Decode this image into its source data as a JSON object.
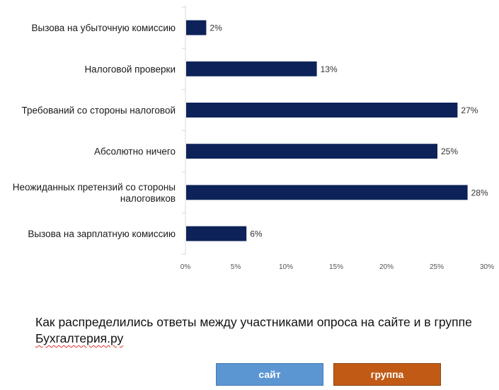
{
  "chart_data": {
    "type": "bar",
    "orientation": "horizontal",
    "categories": [
      "Вызова на убыточную комиссию",
      "Налоговой проверки",
      "Требований со стороны налоговой",
      "Абсолютно ничего",
      "Неожиданных претензий со стороны налоговиков",
      "Вызова на зарплатную комиссию"
    ],
    "category_lines": [
      [
        "Вызова на убыточную комиссию"
      ],
      [
        "Налоговой проверки"
      ],
      [
        "Требований со стороны налоговой"
      ],
      [
        "Абсолютно ничего"
      ],
      [
        "Неожиданных претензий со стороны",
        "налоговиков"
      ],
      [
        "Вызова на зарплатную комиссию"
      ]
    ],
    "values": [
      2,
      13,
      27,
      25,
      28,
      6
    ],
    "value_labels": [
      "2%",
      "13%",
      "27%",
      "25%",
      "28%",
      "6%"
    ],
    "xlim": [
      0,
      30
    ],
    "ticks": [
      0,
      5,
      10,
      15,
      20,
      25,
      30
    ],
    "tick_labels": [
      "0%",
      "5%",
      "10%",
      "15%",
      "20%",
      "25%",
      "30%"
    ],
    "grid": false,
    "bar_color": "#0d2259",
    "xlabel": "",
    "ylabel": ""
  },
  "caption": {
    "line1": "Как распределились ответы между участниками опроса на сайте и в группе",
    "line2": "Бухгалтерия.ру"
  },
  "buttons": {
    "site_label": "сайт",
    "site_color": "#5b95d2",
    "group_label": "группа",
    "group_color": "#c05a15"
  }
}
